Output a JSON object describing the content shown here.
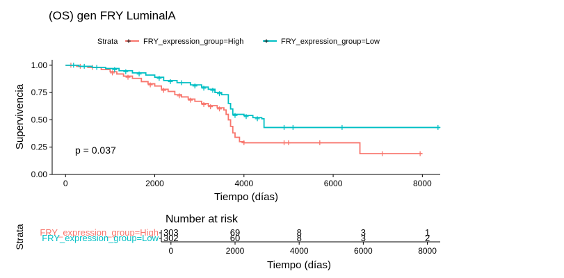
{
  "chart_data": [
    {
      "type": "line",
      "subtype": "kaplan-meier",
      "title": "(OS) gen FRY LuminalA",
      "xlabel": "Tiempo (días)",
      "ylabel": "Supervivencia",
      "xlim": [
        -300,
        8400
      ],
      "ylim": [
        0,
        1.05
      ],
      "xticks": [
        0,
        2000,
        4000,
        6000,
        8000
      ],
      "yticks": [
        0.0,
        0.25,
        0.5,
        0.75,
        1.0
      ],
      "ytick_labels": [
        "0.00",
        "0.25",
        "0.50",
        "0.75",
        "1.00"
      ],
      "legend": {
        "title": "Strata",
        "position": "top",
        "entries": [
          "FRY_expression_group=High",
          "FRY_expression_group=Low"
        ]
      },
      "annotation": "p = 0.037",
      "grid": false,
      "series": [
        {
          "name": "FRY_expression_group=High",
          "color": "#F8766D",
          "steps": [
            [
              0,
              1.0
            ],
            [
              250,
              0.99
            ],
            [
              500,
              0.98
            ],
            [
              800,
              0.96
            ],
            [
              1000,
              0.94
            ],
            [
              1150,
              0.92
            ],
            [
              1300,
              0.9
            ],
            [
              1500,
              0.88
            ],
            [
              1700,
              0.85
            ],
            [
              1850,
              0.83
            ],
            [
              2000,
              0.81
            ],
            [
              2150,
              0.78
            ],
            [
              2300,
              0.76
            ],
            [
              2450,
              0.73
            ],
            [
              2600,
              0.71
            ],
            [
              2750,
              0.69
            ],
            [
              2900,
              0.67
            ],
            [
              3050,
              0.65
            ],
            [
              3200,
              0.63
            ],
            [
              3400,
              0.61
            ],
            [
              3550,
              0.59
            ],
            [
              3600,
              0.55
            ],
            [
              3650,
              0.5
            ],
            [
              3700,
              0.44
            ],
            [
              3750,
              0.38
            ],
            [
              3800,
              0.34
            ],
            [
              3900,
              0.3
            ],
            [
              4000,
              0.29
            ],
            [
              6600,
              0.29
            ],
            [
              6600,
              0.19
            ],
            [
              8000,
              0.19
            ]
          ],
          "censor": [
            [
              120,
              1.0
            ],
            [
              330,
              0.99
            ],
            [
              600,
              0.98
            ],
            [
              1050,
              0.93
            ],
            [
              1400,
              0.89
            ],
            [
              1900,
              0.82
            ],
            [
              2200,
              0.77
            ],
            [
              2550,
              0.72
            ],
            [
              2800,
              0.68
            ],
            [
              3100,
              0.64
            ],
            [
              3250,
              0.62
            ],
            [
              3450,
              0.6
            ],
            [
              4000,
              0.29
            ],
            [
              4900,
              0.29
            ],
            [
              5000,
              0.29
            ],
            [
              5700,
              0.29
            ],
            [
              7100,
              0.19
            ],
            [
              7950,
              0.19
            ]
          ]
        },
        {
          "name": "FRY_expression_group=Low",
          "color": "#00BFC4",
          "steps": [
            [
              0,
              1.0
            ],
            [
              300,
              0.99
            ],
            [
              600,
              0.98
            ],
            [
              900,
              0.97
            ],
            [
              1200,
              0.95
            ],
            [
              1500,
              0.93
            ],
            [
              1800,
              0.91
            ],
            [
              2000,
              0.89
            ],
            [
              2200,
              0.86
            ],
            [
              2500,
              0.84
            ],
            [
              2800,
              0.82
            ],
            [
              3050,
              0.8
            ],
            [
              3200,
              0.78
            ],
            [
              3350,
              0.75
            ],
            [
              3500,
              0.73
            ],
            [
              3650,
              0.65
            ],
            [
              3700,
              0.6
            ],
            [
              3750,
              0.55
            ],
            [
              4000,
              0.54
            ],
            [
              4200,
              0.52
            ],
            [
              4400,
              0.51
            ],
            [
              4450,
              0.43
            ],
            [
              8400,
              0.43
            ]
          ],
          "censor": [
            [
              180,
              1.0
            ],
            [
              420,
              0.99
            ],
            [
              700,
              0.98
            ],
            [
              1100,
              0.96
            ],
            [
              1350,
              0.94
            ],
            [
              1650,
              0.92
            ],
            [
              2100,
              0.88
            ],
            [
              2350,
              0.85
            ],
            [
              2600,
              0.84
            ],
            [
              2900,
              0.81
            ],
            [
              3100,
              0.79
            ],
            [
              3300,
              0.77
            ],
            [
              3450,
              0.74
            ],
            [
              3800,
              0.54
            ],
            [
              4050,
              0.53
            ],
            [
              4300,
              0.51
            ],
            [
              4900,
              0.43
            ],
            [
              5100,
              0.43
            ],
            [
              6200,
              0.43
            ],
            [
              8350,
              0.43
            ]
          ]
        }
      ]
    },
    {
      "type": "table",
      "title": "Number at risk",
      "xlabel": "Tiempo (días)",
      "ylabel": "Strata",
      "xlim": [
        -300,
        8400
      ],
      "xticks": [
        0,
        2000,
        4000,
        6000,
        8000
      ],
      "rows": [
        {
          "label": "FRY_expression_group=High",
          "color": "#F8766D",
          "values": [
            "303",
            "69",
            "8",
            "3",
            "1"
          ]
        },
        {
          "label": "FRY_expression_group=Low",
          "color": "#00BFC4",
          "values": [
            "302",
            "60",
            "8",
            "3",
            "2"
          ]
        }
      ]
    }
  ]
}
